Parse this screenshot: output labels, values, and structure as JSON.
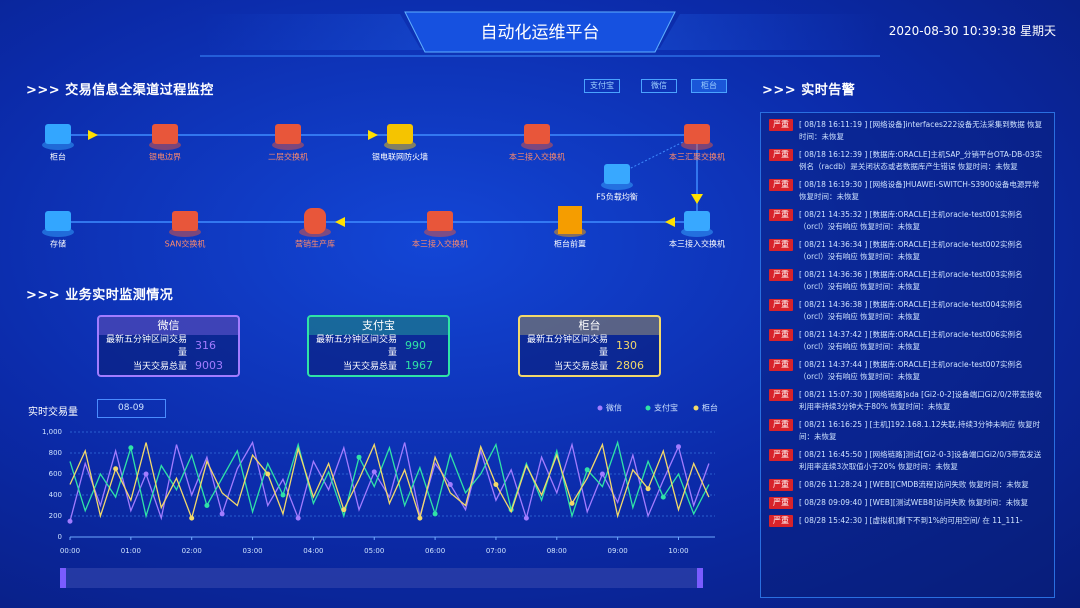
{
  "header": {
    "title": "自动化运维平台",
    "datetime": "2020-08-30 10:39:38 星期天"
  },
  "flow": {
    "title": ">>> 交易信息全渠道过程监控",
    "tabs": [
      "支付宝",
      "微信",
      "柜台"
    ],
    "nodes": [
      "柜台",
      "银电边界",
      "二层交换机",
      "银电联网防火墙",
      "本三接入交换机",
      "本三汇聚交换机",
      "F5负载均衡",
      "存储",
      "SAN交换机",
      "营销生产库",
      "本三接入交换机",
      "柜台前置",
      "本三接入交换机"
    ]
  },
  "monitor": {
    "title": ">>> 业务实时监测情况",
    "cards": [
      {
        "name": "微信",
        "rows": [
          {
            "label": "最新五分钟区间交易量",
            "value": 316
          },
          {
            "label": "当天交易总量",
            "value": 9003
          }
        ]
      },
      {
        "name": "支付宝",
        "rows": [
          {
            "label": "最新五分钟区间交易量",
            "value": 990
          },
          {
            "label": "当天交易总量",
            "value": 1967
          }
        ]
      },
      {
        "name": "柜台",
        "rows": [
          {
            "label": "最新五分钟区间交易量",
            "value": 130
          },
          {
            "label": "当天交易总量",
            "value": 2806
          }
        ]
      }
    ]
  },
  "chart_data": {
    "type": "line",
    "y_label": "实时交易量",
    "date": "08-09",
    "x": [
      0,
      0.25,
      0.5,
      0.75,
      1,
      1.25,
      1.5,
      1.75,
      2,
      2.25,
      2.5,
      2.75,
      3,
      3.25,
      3.5,
      3.75,
      4,
      4.25,
      4.5,
      4.75,
      5,
      5.25,
      5.5,
      5.75,
      6,
      6.25,
      6.5,
      6.75,
      7,
      7.25,
      7.5,
      7.75,
      8,
      8.25,
      8.5,
      8.75,
      9,
      9.25,
      9.5,
      9.75,
      10,
      10.25,
      10.5
    ],
    "xlim": [
      0,
      10.6
    ],
    "xticks": [
      {
        "value": 0,
        "label": "00:00"
      },
      {
        "value": 1,
        "label": "01:00"
      },
      {
        "value": 2,
        "label": "02:00"
      },
      {
        "value": 3,
        "label": "03:00"
      },
      {
        "value": 4,
        "label": "04:00"
      },
      {
        "value": 5,
        "label": "05:00"
      },
      {
        "value": 6,
        "label": "06:00"
      },
      {
        "value": 7,
        "label": "07:00"
      },
      {
        "value": 8,
        "label": "08:00"
      },
      {
        "value": 9,
        "label": "09:00"
      },
      {
        "value": 10,
        "label": "10:00"
      }
    ],
    "ylim": [
      0,
      1000
    ],
    "yticks": [
      0,
      200,
      400,
      600,
      800,
      {
        "value": 1000,
        "label": "1,000"
      }
    ],
    "series": [
      {
        "name": "微信",
        "color": "#a27cff",
        "values": [
          150,
          700,
          300,
          820,
          250,
          600,
          180,
          880,
          400,
          760,
          220,
          650,
          900,
          300,
          550,
          180,
          720,
          450,
          850,
          260,
          620,
          380,
          900,
          200,
          700,
          500,
          260,
          820,
          350,
          640,
          180,
          760,
          420,
          880,
          240,
          600,
          330,
          780,
          200,
          540,
          860,
          300,
          700
        ]
      },
      {
        "name": "支付宝",
        "color": "#2fe3a6",
        "values": [
          720,
          250,
          600,
          380,
          850,
          200,
          680,
          450,
          780,
          300,
          560,
          820,
          240,
          700,
          400,
          880,
          320,
          620,
          200,
          760,
          480,
          850,
          300,
          660,
          220,
          790,
          420,
          600,
          880,
          260,
          700,
          350,
          820,
          200,
          640,
          480,
          900,
          280,
          720,
          380,
          600,
          220,
          500
        ]
      },
      {
        "name": "柜台",
        "color": "#f3d96a",
        "values": [
          500,
          820,
          200,
          650,
          350,
          900,
          280,
          560,
          180,
          720,
          420,
          300,
          780,
          600,
          220,
          840,
          380,
          700,
          260,
          550,
          880,
          320,
          640,
          180,
          760,
          420,
          300,
          860,
          500,
          240,
          680,
          400,
          780,
          320,
          560,
          880,
          200,
          640,
          460,
          820,
          260,
          700,
          380
        ]
      }
    ]
  },
  "alerts": {
    "title": ">>> 实时告警",
    "items": [
      {
        "level": "严重",
        "text": "[ 08/18 16:11:19 ] [网络设备]interfaces222设备无法采集到数据 恢复时间：未恢复"
      },
      {
        "level": "严重",
        "text": "[ 08/18 16:12:39 ] [数据库:ORACLE]主机SAP_分销平台OTA-DB-03实例名（racdb）是关闭状态或者数据库产生错误 恢复时间：未恢复"
      },
      {
        "level": "严重",
        "text": "[ 08/18 16:19:30 ] [网络设备]HUAWEI-SWITCH-S3900设备电源异常 恢复时间：未恢复"
      },
      {
        "level": "严重",
        "text": "[ 08/21 14:35:32 ] [数据库:ORACLE]主机oracle-test001实例名（orcl）没有响应 恢复时间：未恢复"
      },
      {
        "level": "严重",
        "text": "[ 08/21 14:36:34 ] [数据库:ORACLE]主机oracle-test002实例名（orcl）没有响应 恢复时间：未恢复"
      },
      {
        "level": "严重",
        "text": "[ 08/21 14:36:36 ] [数据库:ORACLE]主机oracle-test003实例名（orcl）没有响应 恢复时间：未恢复"
      },
      {
        "level": "严重",
        "text": "[ 08/21 14:36:38 ] [数据库:ORACLE]主机oracle-test004实例名（orcl）没有响应 恢复时间：未恢复"
      },
      {
        "level": "严重",
        "text": "[ 08/21 14:37:42 ] [数据库:ORACLE]主机oracle-test006实例名（orcl）没有响应 恢复时间：未恢复"
      },
      {
        "level": "严重",
        "text": "[ 08/21 14:37:44 ] [数据库:ORACLE]主机oracle-test007实例名（orcl）没有响应 恢复时间：未恢复"
      },
      {
        "level": "严重",
        "text": "[ 08/21 15:07:30 ] [网络链路]sda [Gi2-0-2]设备端口Gi2/0/2带宽接收利用率持续3分钟大于80% 恢复时间：未恢复"
      },
      {
        "level": "严重",
        "text": "[ 08/21 16:16:25 ] [主机]192.168.1.12失联,持续3分钟未响应 恢复时间：未恢复"
      },
      {
        "level": "严重",
        "text": "[ 08/21 16:45:50 ] [网络链路]测试[Gi2-0-3]设备端口Gi2/0/3带宽发送利用率连续3次取值小于20% 恢复时间：未恢复"
      },
      {
        "level": "严重",
        "text": "[ 08/26 11:28:24 ] [WEB][CMDB流程]访问失败 恢复时间：未恢复"
      },
      {
        "level": "严重",
        "text": "[ 08/28 09:09:40 ] [WEB][测试WEB8]访问失败 恢复时间：未恢复"
      },
      {
        "level": "严重",
        "text": "[ 08/28 15:42:30 ] [虚拟机]剩下不到1%的可用空间/ 在 11_111-"
      }
    ]
  }
}
